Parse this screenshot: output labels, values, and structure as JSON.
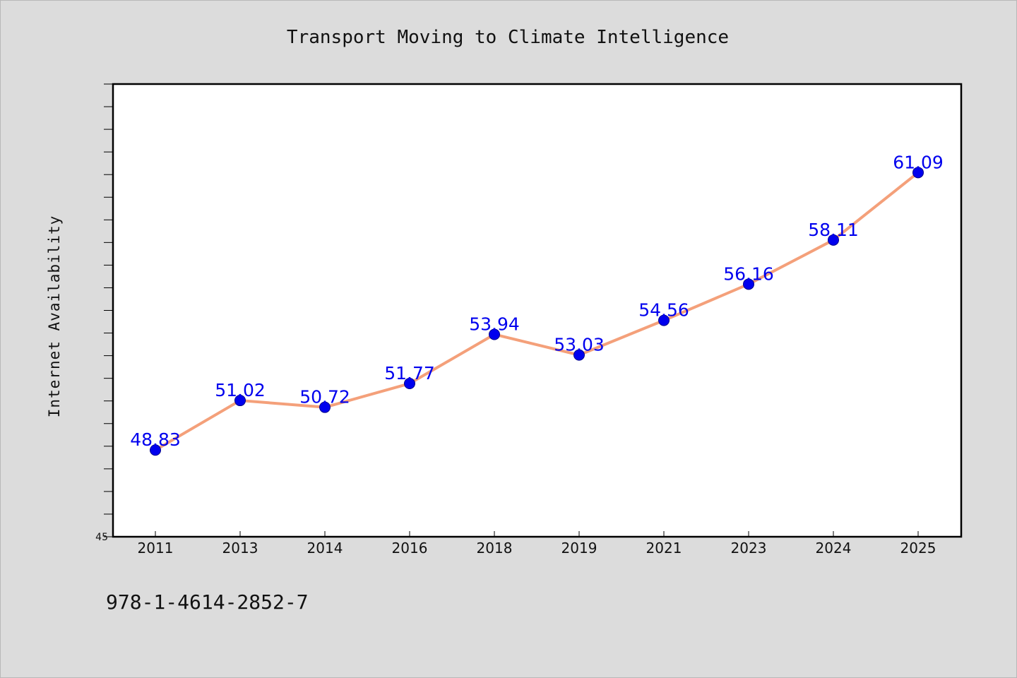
{
  "chart_data": {
    "type": "line",
    "title": "Transport Moving to Climate Intelligence",
    "xlabel": "",
    "ylabel": "Internet Availability",
    "categories": [
      "2011",
      "2013",
      "2014",
      "2016",
      "2018",
      "2019",
      "2021",
      "2023",
      "2024",
      "2025"
    ],
    "series": [
      {
        "values": [
          48.83,
          51.02,
          50.72,
          51.77,
          53.94,
          53.03,
          54.56,
          56.16,
          58.11,
          61.09
        ],
        "labels": [
          "48.83",
          "51.02",
          "50.72",
          "51.77",
          "53.94",
          "53.03",
          "54.56",
          "56.16",
          "58.11",
          "61.09"
        ],
        "line_color": "#f4a07a",
        "marker_color": "#0000ee"
      }
    ],
    "ylim": [
      45,
      65
    ],
    "yticks_labeled": [
      "45"
    ],
    "grid": false,
    "legend": "none"
  },
  "footer": {
    "isbn": "978-1-4614-2852-7"
  },
  "colors": {
    "background": "#dcdcdc",
    "plot_background": "#ffffff",
    "axis": "#000000"
  }
}
